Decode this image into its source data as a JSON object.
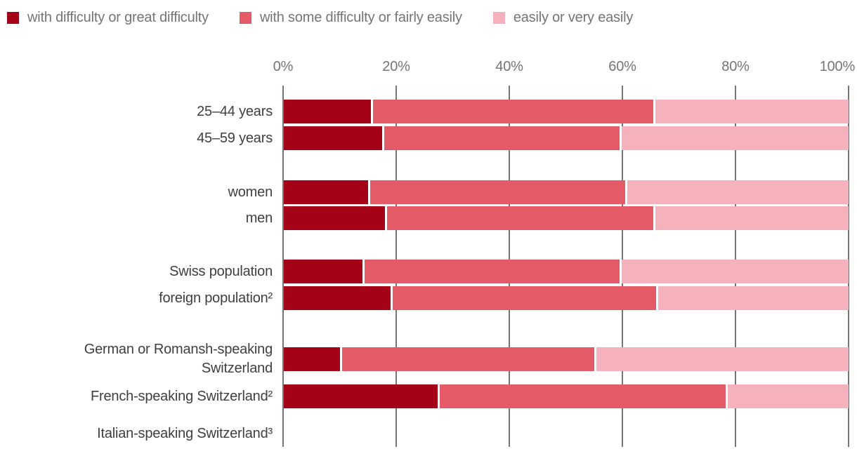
{
  "chart_data": {
    "type": "bar",
    "variant": "horizontal-stacked",
    "title": "",
    "legend_position": "top",
    "legend": [
      {
        "label": "with difficulty or great difficulty",
        "color": "#a40216"
      },
      {
        "label": "with some difficulty or fairly easily",
        "color": "#e55a67"
      },
      {
        "label": "easily or very easily",
        "color": "#f5b1bc"
      }
    ],
    "x_axis": {
      "ticks": [
        "0%",
        "20%",
        "40%",
        "60%",
        "80%",
        "100%"
      ],
      "min": 0,
      "max": 100,
      "grid": true,
      "grid_color": "#757575"
    },
    "unit": "percent of group",
    "groups": [
      {
        "rows": [
          {
            "label": "25–44 years",
            "values": [
              15.5,
              50,
              34.5
            ]
          },
          {
            "label": "45–59 years",
            "values": [
              17.5,
              42,
              40.5
            ]
          }
        ]
      },
      {
        "rows": [
          {
            "label": "women",
            "values": [
              15,
              45.5,
              39.5
            ]
          },
          {
            "label": "men",
            "values": [
              18,
              47.5,
              34.5
            ]
          }
        ]
      },
      {
        "rows": [
          {
            "label": "Swiss population",
            "values": [
              14,
              45.5,
              40.5
            ]
          },
          {
            "label": "foreign population²",
            "values": [
              19,
              47,
              34
            ]
          }
        ]
      },
      {
        "rows": [
          {
            "label": "German or Romansh-speaking Switzerland",
            "label_lines": [
              "German or Romansh-speaking",
              "Switzerland"
            ],
            "values": [
              10,
              45,
              45
            ]
          },
          {
            "label": "French-speaking Switzerland²",
            "values": [
              27.5,
              51,
              21.5
            ]
          },
          {
            "label": "Italian-speaking Switzerland³",
            "values": null
          }
        ]
      }
    ]
  }
}
